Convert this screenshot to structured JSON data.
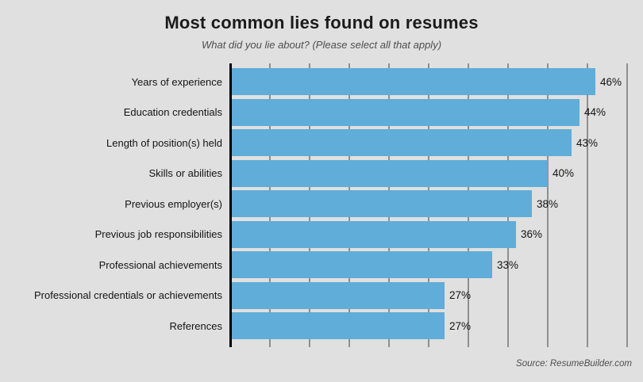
{
  "colors": {
    "background": "#e0e0e0",
    "bar": "#5fadd8",
    "gridline": "#8f8f8f",
    "axis": "#000000",
    "title_text": "#1b1b1b",
    "subtitle_text": "#4e4e4e"
  },
  "chart_data": {
    "type": "bar",
    "orientation": "horizontal",
    "title": "Most common lies found on resumes",
    "subtitle": "What did you lie about? (Please select all that apply)",
    "source": "Source: ResumeBuilder.com",
    "categories": [
      "Years of experience",
      "Education credentials",
      "Length of position(s) held",
      "Skills or abilities",
      "Previous employer(s)",
      "Previous job responsibilities",
      "Professional achievements",
      "Professional credentials or achievements",
      "References"
    ],
    "values": [
      46,
      44,
      43,
      40,
      38,
      36,
      33,
      27,
      27
    ],
    "value_labels": [
      "46%",
      "44%",
      "43%",
      "40%",
      "38%",
      "36%",
      "33%",
      "27%",
      "27%"
    ],
    "xlabel": "",
    "ylabel": "",
    "xlim": [
      0,
      50
    ],
    "gridline_interval": 5,
    "grid": true,
    "legend": false
  }
}
